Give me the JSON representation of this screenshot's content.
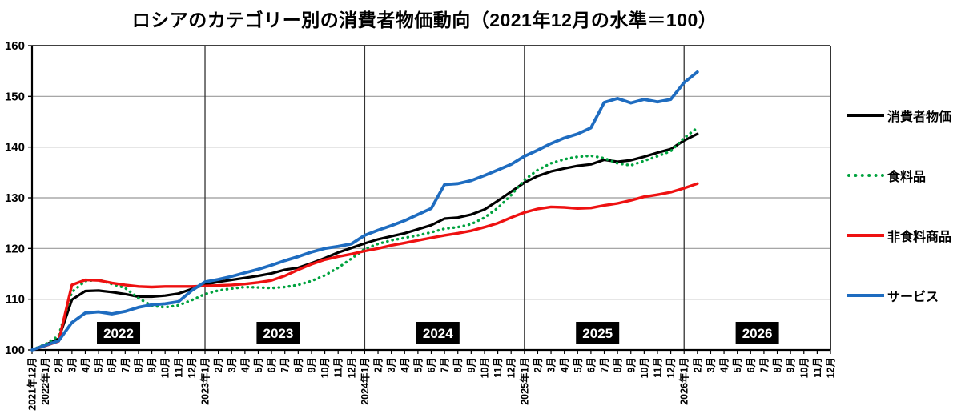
{
  "title": "ロシアのカテゴリー別の消費者物価動向（2021年12月の水準＝100）",
  "legend": {
    "position": "right",
    "items": [
      {
        "key": "cpi",
        "label": "消費者物価",
        "color": "#000000",
        "style": "solid"
      },
      {
        "key": "food",
        "label": "食料品",
        "color": "#00a23e",
        "style": "dotted"
      },
      {
        "key": "nonfood",
        "label": "非食料商品",
        "color": "#ee1111",
        "style": "solid"
      },
      {
        "key": "services",
        "label": "サービス",
        "color": "#1e6cc0",
        "style": "solid"
      }
    ]
  },
  "chart_data": {
    "type": "line",
    "title": "ロシアのカテゴリー別の消費者物価動向（2021年12月の水準＝100）",
    "ylim": [
      100,
      160
    ],
    "y_ticks": [
      100,
      110,
      120,
      130,
      140,
      150,
      160
    ],
    "grid": true,
    "legend_position": "right",
    "x_labels": [
      "2021年12月",
      "2022年1月",
      "2月",
      "3月",
      "4月",
      "5月",
      "6月",
      "7月",
      "8月",
      "9月",
      "10月",
      "11月",
      "12月",
      "2023年1月",
      "2月",
      "3月",
      "4月",
      "5月",
      "6月",
      "7月",
      "8月",
      "9月",
      "10月",
      "11月",
      "12月",
      "2024年1月",
      "2月",
      "3月",
      "4月",
      "5月",
      "6月",
      "7月",
      "8月",
      "9月",
      "10月",
      "11月",
      "12月",
      "2025年1月",
      "2月",
      "3月",
      "4月",
      "5月",
      "6月",
      "7月",
      "8月",
      "9月",
      "10月",
      "11月",
      "12月",
      "2026年1月",
      "2月",
      "3月",
      "4月",
      "5月",
      "6月",
      "7月",
      "8月",
      "9月",
      "10月",
      "11月",
      "12月"
    ],
    "year_separator_indices": [
      13,
      25,
      37,
      49
    ],
    "year_badges": [
      {
        "label": "2022",
        "center_index": 6.5
      },
      {
        "label": "2023",
        "center_index": 18.5
      },
      {
        "label": "2024",
        "center_index": 30.5
      },
      {
        "label": "2025",
        "center_index": 42.5
      },
      {
        "label": "2026",
        "center_index": 54.5
      }
    ],
    "series": [
      {
        "key": "cpi",
        "name": "消費者物価",
        "color": "#000000",
        "style": "solid",
        "width": 3.2,
        "values": [
          100,
          101.0,
          102.2,
          109.9,
          111.6,
          111.7,
          111.4,
          111.0,
          110.5,
          110.5,
          110.7,
          111.1,
          112.0,
          112.9,
          113.4,
          113.8,
          114.2,
          114.6,
          115.1,
          115.8,
          116.2,
          117.1,
          118.1,
          119.2,
          120.1,
          121.0,
          121.8,
          122.4,
          123.0,
          123.8,
          124.6,
          125.9,
          126.1,
          126.7,
          127.7,
          129.4,
          131.2,
          133.0,
          134.3,
          135.2,
          135.8,
          136.3,
          136.6,
          137.5,
          137.1,
          137.4,
          138.1,
          138.9,
          139.6,
          141.3,
          142.6
        ]
      },
      {
        "key": "food",
        "name": "食料品",
        "color": "#00a23e",
        "style": "dotted",
        "width": 3.4,
        "values": [
          100,
          101.1,
          102.8,
          111.4,
          113.6,
          113.8,
          113.0,
          112.2,
          110.2,
          108.7,
          108.4,
          108.8,
          109.8,
          111.0,
          111.7,
          112.1,
          112.4,
          112.3,
          112.2,
          112.4,
          112.8,
          113.6,
          114.7,
          116.2,
          118.0,
          119.9,
          120.9,
          121.6,
          122.1,
          122.6,
          123.2,
          123.9,
          124.2,
          124.8,
          126.1,
          128.0,
          130.5,
          133.5,
          135.5,
          136.8,
          137.6,
          138.1,
          138.3,
          137.8,
          136.8,
          136.4,
          137.3,
          138.2,
          139.2,
          141.8,
          143.8
        ]
      },
      {
        "key": "nonfood",
        "name": "非食料商品",
        "color": "#ee1111",
        "style": "solid",
        "width": 3.4,
        "values": [
          100,
          100.8,
          101.7,
          112.8,
          113.8,
          113.7,
          113.2,
          112.8,
          112.5,
          112.4,
          112.5,
          112.5,
          112.5,
          112.6,
          112.7,
          112.8,
          113.0,
          113.3,
          113.7,
          114.6,
          115.8,
          116.9,
          117.8,
          118.4,
          118.9,
          119.5,
          120.0,
          120.6,
          121.1,
          121.6,
          122.1,
          122.6,
          123.0,
          123.5,
          124.2,
          125.0,
          126.1,
          127.1,
          127.8,
          128.2,
          128.1,
          127.9,
          128.0,
          128.5,
          128.9,
          129.5,
          130.2,
          130.6,
          131.1,
          131.9,
          132.8
        ]
      },
      {
        "key": "services",
        "name": "サービス",
        "color": "#1e6cc0",
        "style": "solid",
        "width": 3.8,
        "values": [
          100,
          100.9,
          101.8,
          105.4,
          107.3,
          107.5,
          107.1,
          107.6,
          108.4,
          108.9,
          109.1,
          109.5,
          111.7,
          113.4,
          113.9,
          114.5,
          115.2,
          115.9,
          116.7,
          117.6,
          118.4,
          119.3,
          120.0,
          120.4,
          120.9,
          122.6,
          123.6,
          124.5,
          125.5,
          126.7,
          127.9,
          132.6,
          132.8,
          133.4,
          134.4,
          135.5,
          136.6,
          138.2,
          139.4,
          140.7,
          141.8,
          142.6,
          143.8,
          148.8,
          149.6,
          148.7,
          149.4,
          148.9,
          149.4,
          152.7,
          154.8
        ]
      }
    ]
  }
}
